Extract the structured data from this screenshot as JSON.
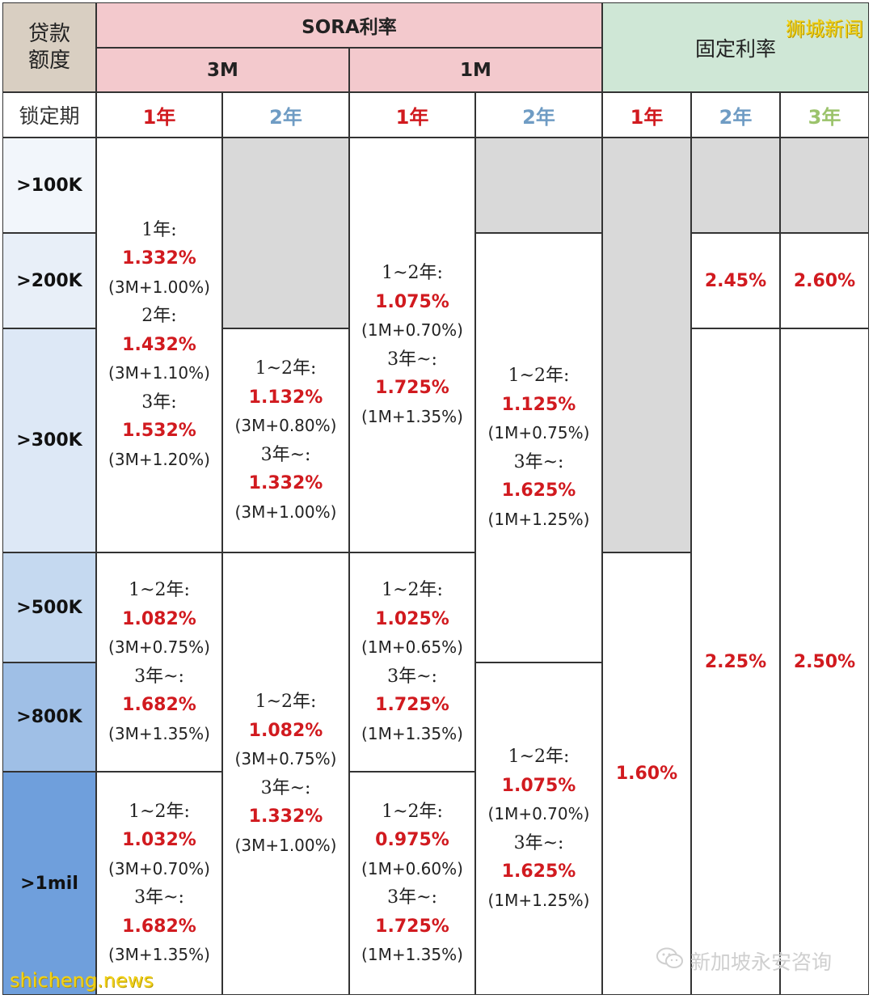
{
  "header": {
    "corner_label": "贷款\n额度",
    "sora_label": "SORA利率",
    "fixed_label": "固定利率",
    "sub_3m": "3M",
    "sub_1m": "1M",
    "lock_label": "锁定期",
    "terms": [
      "1年",
      "2年",
      "1年",
      "2年",
      "1年",
      "2年",
      "3年"
    ]
  },
  "colors": {
    "sora_header": "#f3c9cd",
    "fixed_header": "#cfe7d6",
    "corner": "#d9cfc2",
    "rate_red": "#d11a1f",
    "term_blue": "#6f9cc4",
    "term_green": "#9bc36b",
    "unavailable_grey": "#d9d9d9",
    "row_gradient": [
      "#f2f6fb",
      "#e8eff8",
      "#dde8f6",
      "#c5d9f0",
      "#9fbfe6",
      "#6f9fdc"
    ]
  },
  "rows": [
    ">100K",
    ">200K",
    ">300K",
    ">500K",
    ">800K",
    ">1mil"
  ],
  "cells": {
    "c0_a": [
      {
        "t": "lbl",
        "v": "1年:"
      },
      {
        "t": "rate",
        "v": "1.332%"
      },
      {
        "t": "spread",
        "v": "(3M+1.00%)"
      },
      {
        "t": "lbl",
        "v": "2年:"
      },
      {
        "t": "rate",
        "v": "1.432%"
      },
      {
        "t": "spread",
        "v": "(3M+1.10%)"
      },
      {
        "t": "lbl",
        "v": "3年:"
      },
      {
        "t": "rate",
        "v": "1.532%"
      },
      {
        "t": "spread",
        "v": "(3M+1.20%)"
      }
    ],
    "c0_b": [
      {
        "t": "lbl",
        "v": "1~2年:"
      },
      {
        "t": "rate",
        "v": "1.082%"
      },
      {
        "t": "spread",
        "v": "(3M+0.75%)"
      },
      {
        "t": "lbl",
        "v": "3年~:"
      },
      {
        "t": "rate",
        "v": "1.682%"
      },
      {
        "t": "spread",
        "v": "(3M+1.35%)"
      }
    ],
    "c0_c": [
      {
        "t": "lbl",
        "v": "1~2年:"
      },
      {
        "t": "rate",
        "v": "1.032%"
      },
      {
        "t": "spread",
        "v": "(3M+0.70%)"
      },
      {
        "t": "lbl",
        "v": "3年~:"
      },
      {
        "t": "rate",
        "v": "1.682%"
      },
      {
        "t": "spread",
        "v": "(3M+1.35%)"
      }
    ],
    "c1_b": [
      {
        "t": "lbl",
        "v": "1~2年:"
      },
      {
        "t": "rate",
        "v": "1.132%"
      },
      {
        "t": "spread",
        "v": "(3M+0.80%)"
      },
      {
        "t": "lbl",
        "v": "3年~:"
      },
      {
        "t": "rate",
        "v": "1.332%"
      },
      {
        "t": "spread",
        "v": "(3M+1.00%)"
      }
    ],
    "c1_c": [
      {
        "t": "lbl",
        "v": "1~2年:"
      },
      {
        "t": "rate",
        "v": "1.082%"
      },
      {
        "t": "spread",
        "v": "(3M+0.75%)"
      },
      {
        "t": "lbl",
        "v": "3年~:"
      },
      {
        "t": "rate",
        "v": "1.332%"
      },
      {
        "t": "spread",
        "v": "(3M+1.00%)"
      }
    ],
    "c2_a": [
      {
        "t": "lbl",
        "v": "1~2年:"
      },
      {
        "t": "rate",
        "v": "1.075%"
      },
      {
        "t": "spread",
        "v": "(1M+0.70%)"
      },
      {
        "t": "lbl",
        "v": "3年~:"
      },
      {
        "t": "rate",
        "v": "1.725%"
      },
      {
        "t": "spread",
        "v": "(1M+1.35%)"
      }
    ],
    "c2_b": [
      {
        "t": "lbl",
        "v": "1~2年:"
      },
      {
        "t": "rate",
        "v": "1.025%"
      },
      {
        "t": "spread",
        "v": "(1M+0.65%)"
      },
      {
        "t": "lbl",
        "v": "3年~:"
      },
      {
        "t": "rate",
        "v": "1.725%"
      },
      {
        "t": "spread",
        "v": "(1M+1.35%)"
      }
    ],
    "c2_c": [
      {
        "t": "lbl",
        "v": "1~2年:"
      },
      {
        "t": "rate",
        "v": "0.975%"
      },
      {
        "t": "spread",
        "v": "(1M+0.60%)"
      },
      {
        "t": "lbl",
        "v": "3年~:"
      },
      {
        "t": "rate",
        "v": "1.725%"
      },
      {
        "t": "spread",
        "v": "(1M+1.35%)"
      }
    ],
    "c3_b": [
      {
        "t": "lbl",
        "v": "1~2年:"
      },
      {
        "t": "rate",
        "v": "1.125%"
      },
      {
        "t": "spread",
        "v": "(1M+0.75%)"
      },
      {
        "t": "lbl",
        "v": "3年~:"
      },
      {
        "t": "rate",
        "v": "1.625%"
      },
      {
        "t": "spread",
        "v": "(1M+1.25%)"
      }
    ],
    "c3_c": [
      {
        "t": "lbl",
        "v": "1~2年:"
      },
      {
        "t": "rate",
        "v": "1.075%"
      },
      {
        "t": "spread",
        "v": "(1M+0.70%)"
      },
      {
        "t": "lbl",
        "v": "3年~:"
      },
      {
        "t": "rate",
        "v": "1.625%"
      },
      {
        "t": "spread",
        "v": "(1M+1.25%)"
      }
    ],
    "c4_b": "1.60%",
    "c5_a": "2.45%",
    "c5_b": "2.25%",
    "c6_a": "2.60%",
    "c6_b": "2.50%"
  },
  "watermarks": {
    "top_right": "狮城新闻",
    "bottom_left": "shicheng.news",
    "wechat": "新加坡永安咨询",
    "wechat_icon": "wechat-icon"
  }
}
